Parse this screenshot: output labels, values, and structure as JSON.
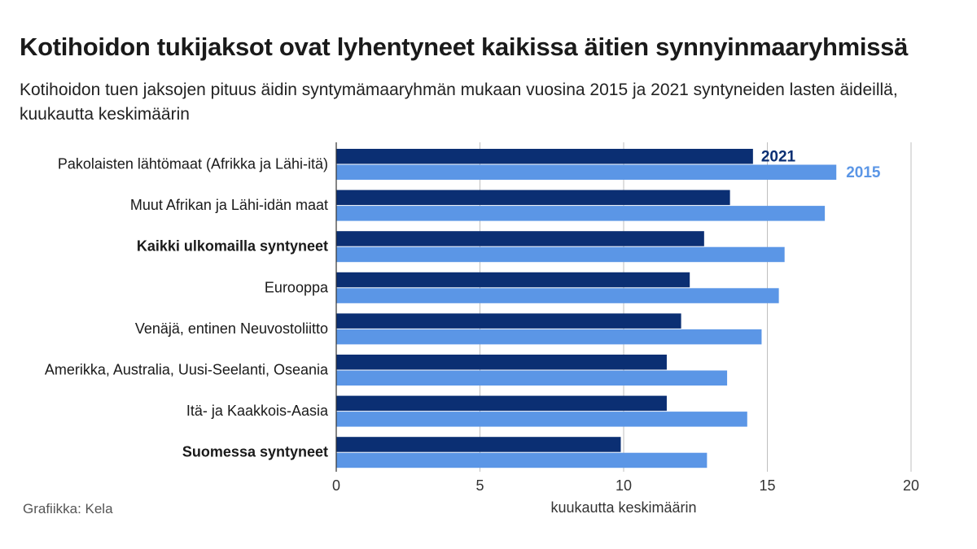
{
  "header": {
    "title": "Kotihoidon tukijaksot ovat lyhentyneet kaikissa äitien synnyinmaaryhmissä",
    "subtitle": "Kotihoidon tuen jaksojen pituus äidin syntymämaaryhmän mukaan vuosina 2015 ja 2021 syntyneiden lasten äideillä, kuukautta keskimäärin"
  },
  "footer": {
    "source": "Grafiikka: Kela"
  },
  "colors": {
    "series_2021": "#0b2f73",
    "series_2015": "#5b96e6",
    "grid": "#bfbfbf"
  },
  "chart_data": {
    "type": "bar",
    "orientation": "horizontal",
    "categories": [
      "Pakolaisten lähtömaat (Afrikka ja Lähi-itä)",
      "Muut Afrikan ja Lähi-idän maat",
      "Kaikki ulkomailla syntyneet",
      "Eurooppa",
      "Venäjä, entinen Neuvostoliitto",
      "Amerikka, Australia, Uusi-Seelanti, Oseania",
      "Itä- ja Kaakkois-Aasia",
      "Suomessa syntyneet"
    ],
    "bold_categories": [
      "Kaikki ulkomailla syntyneet",
      "Suomessa syntyneet"
    ],
    "series": [
      {
        "name": "2021",
        "values": [
          14.5,
          13.7,
          12.8,
          12.3,
          12.0,
          11.5,
          11.5,
          9.9
        ]
      },
      {
        "name": "2015",
        "values": [
          17.4,
          17.0,
          15.6,
          15.4,
          14.8,
          13.6,
          14.3,
          12.9
        ]
      }
    ],
    "xlabel": "kuukautta keskimäärin",
    "xlim": [
      0,
      20
    ],
    "xticks": [
      0,
      5,
      10,
      15,
      20
    ],
    "grid": true,
    "legend": "inline labels on first category"
  }
}
